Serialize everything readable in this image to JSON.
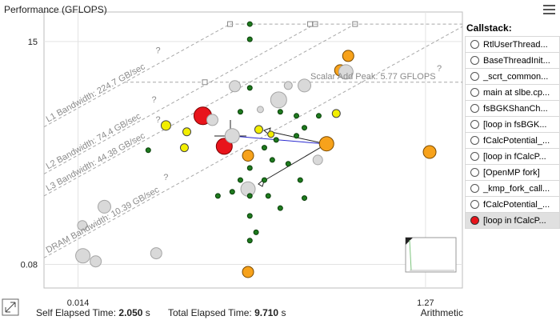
{
  "chart_data": {
    "type": "roofline",
    "y_label": "Performance (GFLOPS)",
    "x_label": "Arithmetic Intensity (FLOP/Byte)",
    "xscale": "log",
    "yscale": "log",
    "xlim": [
      0.009,
      2.05
    ],
    "ylim": [
      0.046,
      30
    ],
    "xticks": [
      0.014,
      1.27
    ],
    "yticks": [
      15,
      0.08
    ],
    "grid": true,
    "unknown_marker": "?",
    "rooflines": [
      {
        "label": "L1 Bandwidth: 224.7 GB/sec",
        "bandwidth": 224.7
      },
      {
        "label": "L2 Bandwidth: 74.4 GB/sec",
        "bandwidth": 74.4
      },
      {
        "label": "L3 Bandwidth: 44.38 GB/sec",
        "bandwidth": 44.38
      },
      {
        "label": "DRAM Bandwidth: 10.39 GB/sec",
        "bandwidth": 10.39
      }
    ],
    "peaks": [
      {
        "value": 22.6
      },
      {
        "label": "Scalar Add Peak: 5.77 GFLOPS",
        "value": 5.77
      }
    ],
    "series": [
      {
        "color": "#e8141b",
        "x": [
          0.0706,
          0.0933
        ],
        "values": [
          2.62,
          1.28
        ],
        "sizes": [
          11,
          10
        ]
      },
      {
        "color": "#f7a21b",
        "x": [
          0.466,
          0.42,
          0.352,
          0.127,
          1.34,
          0.127
        ],
        "values": [
          10.7,
          7.63,
          1.36,
          1.03,
          1.12,
          0.067
        ],
        "sizes": [
          7,
          7,
          9,
          7,
          8,
          7
        ]
      },
      {
        "color": "#f2ee00",
        "x": [
          0.0438,
          0.0574,
          0.0556,
          0.146,
          0.399,
          0.171
        ],
        "values": [
          2.09,
          1.8,
          1.24,
          1.9,
          2.77,
          1.7
        ],
        "sizes": [
          6,
          5,
          5,
          5,
          5,
          4
        ]
      },
      {
        "color": "#d9d9d9",
        "x": [
          0.107,
          0.189,
          0.264,
          0.452,
          0.1035,
          0.127,
          0.08,
          0.0149,
          0.0176,
          0.0386,
          0.0197,
          0.0148,
          0.314,
          0.214,
          0.149
        ],
        "values": [
          5.25,
          3.81,
          5.34,
          7.35,
          1.64,
          0.47,
          2.38,
          0.098,
          0.086,
          0.104,
          0.31,
          0.2,
          0.93,
          5.34,
          3.04
        ],
        "sizes": [
          7,
          10,
          8,
          9,
          9,
          9,
          7,
          9,
          7,
          7,
          8,
          6,
          6,
          5,
          4
        ]
      },
      {
        "color": "#1e7a1e",
        "x": [
          0.13,
          0.13,
          0.13,
          0.115,
          0.0348,
          0.193,
          0.238,
          0.264,
          0.318,
          0.157,
          0.174,
          0.214,
          0.25,
          0.264,
          0.13,
          0.13,
          0.13,
          0.13,
          0.1035,
          0.0859,
          0.165,
          0.193,
          0.141,
          0.238,
          0.183,
          0.157,
          0.115
        ],
        "values": [
          22.6,
          15.8,
          5.05,
          2.88,
          1.17,
          2.88,
          2.62,
          1.98,
          2.62,
          1.24,
          0.93,
          0.85,
          0.58,
          0.38,
          0.77,
          0.4,
          0.25,
          0.14,
          0.44,
          0.4,
          0.4,
          0.3,
          0.17,
          1.64,
          1.49,
          0.58,
          0.58
        ],
        "size": 3
      }
    ]
  },
  "callstack": {
    "title": "Callstack:",
    "selected": 11,
    "items": [
      "RtlUserThread...",
      "BaseThreadInit...",
      "_scrt_common...",
      "main at slbe.cp...",
      "fsBGKShanCh...",
      "[loop in fsBGK...",
      "fCalcPotential_...",
      "[loop in fCalcP...",
      "[OpenMP fork]",
      "_kmp_fork_call...",
      "fCalcPotential_...",
      "[loop in fCalcP..."
    ]
  },
  "footer": {
    "self_label": "Self Elapsed Time:",
    "self_value": "2.050",
    "self_unit": "s",
    "total_label": "Total Elapsed Time:",
    "total_value": "9.710",
    "total_unit": "s"
  }
}
